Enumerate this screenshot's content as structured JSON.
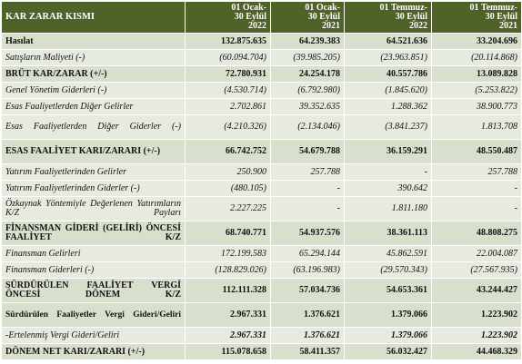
{
  "table": {
    "header": [
      "KAR ZARAR KISMI",
      [
        "01 Ocak-",
        "30 Eylül",
        "2022"
      ],
      [
        "01 Ocak-",
        "30 Eylül",
        "2021"
      ],
      [
        "01 Temmuz-",
        "30 Eylül",
        "2022"
      ],
      [
        "01 Temmuz-",
        "30 Eylül",
        "2021"
      ]
    ],
    "rows": [
      [
        "Hasılat",
        "132.875.635",
        "64.239.383",
        "64.521.636",
        "33.204.696"
      ],
      [
        "Satışların Maliyeti (-)",
        "(60.094.704)",
        "(39.985.205)",
        "(23.963.851)",
        "(20.114.868)"
      ],
      [
        "BRÜT KAR/ZARAR (+/-)",
        "72.780.931",
        "24.254.178",
        "40.557.786",
        "13.089.828"
      ],
      [
        "Genel Yönetim Giderleri (-)",
        "(4.530.714)",
        "(6.792.980)",
        "(1.845.620)",
        "(5.253.822)"
      ],
      [
        "Esas Faaliyetlerden Diğer Gelirler",
        "2.702.861",
        "39.352.635",
        "1.288.362",
        "38.900.773"
      ],
      [
        "Esas Faaliyetlerden Diğer Giderler (-)",
        "(4.210.326)",
        "(2.134.046)",
        "(3.841.237)",
        "1.813.708"
      ],
      [
        "ESAS FAALİYET KARI/ZARARI (+/-)",
        "66.742.752",
        "54.679.788",
        "36.159.291",
        "48.550.487"
      ],
      [
        "Yatırım Faaliyetlerinden Gelirler",
        "250.900",
        "257.788",
        "-",
        "257.788"
      ],
      [
        "Yatırım Faaliyetlerinden Giderler (-)",
        "(480.105)",
        "-",
        "390.642",
        "-"
      ],
      [
        "Özkaynak Yöntemiyle Değerlenen Yatırımların K/Z Payları",
        "2.227.225",
        "-",
        "1.811.180",
        "-"
      ],
      [
        "FİNANSMAN GİDERİ (GELİRİ) ÖNCESİ FAALİYET K/Z",
        "68.740.771",
        "54.937.576",
        "38.361.113",
        "48.808.275"
      ],
      [
        "Finansman Gelirleri",
        "172.199.583",
        "65.294.144",
        "45.862.591",
        "22.004.087"
      ],
      [
        "Finansman Giderleri (-)",
        "(128.829.026)",
        "(63.196.983)",
        "(29.570.343)",
        "(27.567.935)"
      ],
      [
        "SÜRDÜRÜLEN FAALİYET VERGİ ÖNCESİ DÖNEM K/Z",
        "112.111.328",
        "57.034.736",
        "54.653.361",
        "43.244.427"
      ],
      [
        "Sürdürülen Faaliyetler Vergi Gideri/Geliri",
        "2.967.331",
        "1.376.621",
        "1.379.066",
        "1.223.902"
      ],
      [
        "-Ertelenmiş Vergi Gideri/Geliri",
        "2.967.331",
        "1.376.621",
        "1.379.066",
        "1.223.902"
      ],
      [
        "DÖNEM NET KARI/ZARARI (+/-)",
        "115.078.658",
        "58.411.357",
        "56.032.427",
        "44.468.329"
      ]
    ]
  }
}
